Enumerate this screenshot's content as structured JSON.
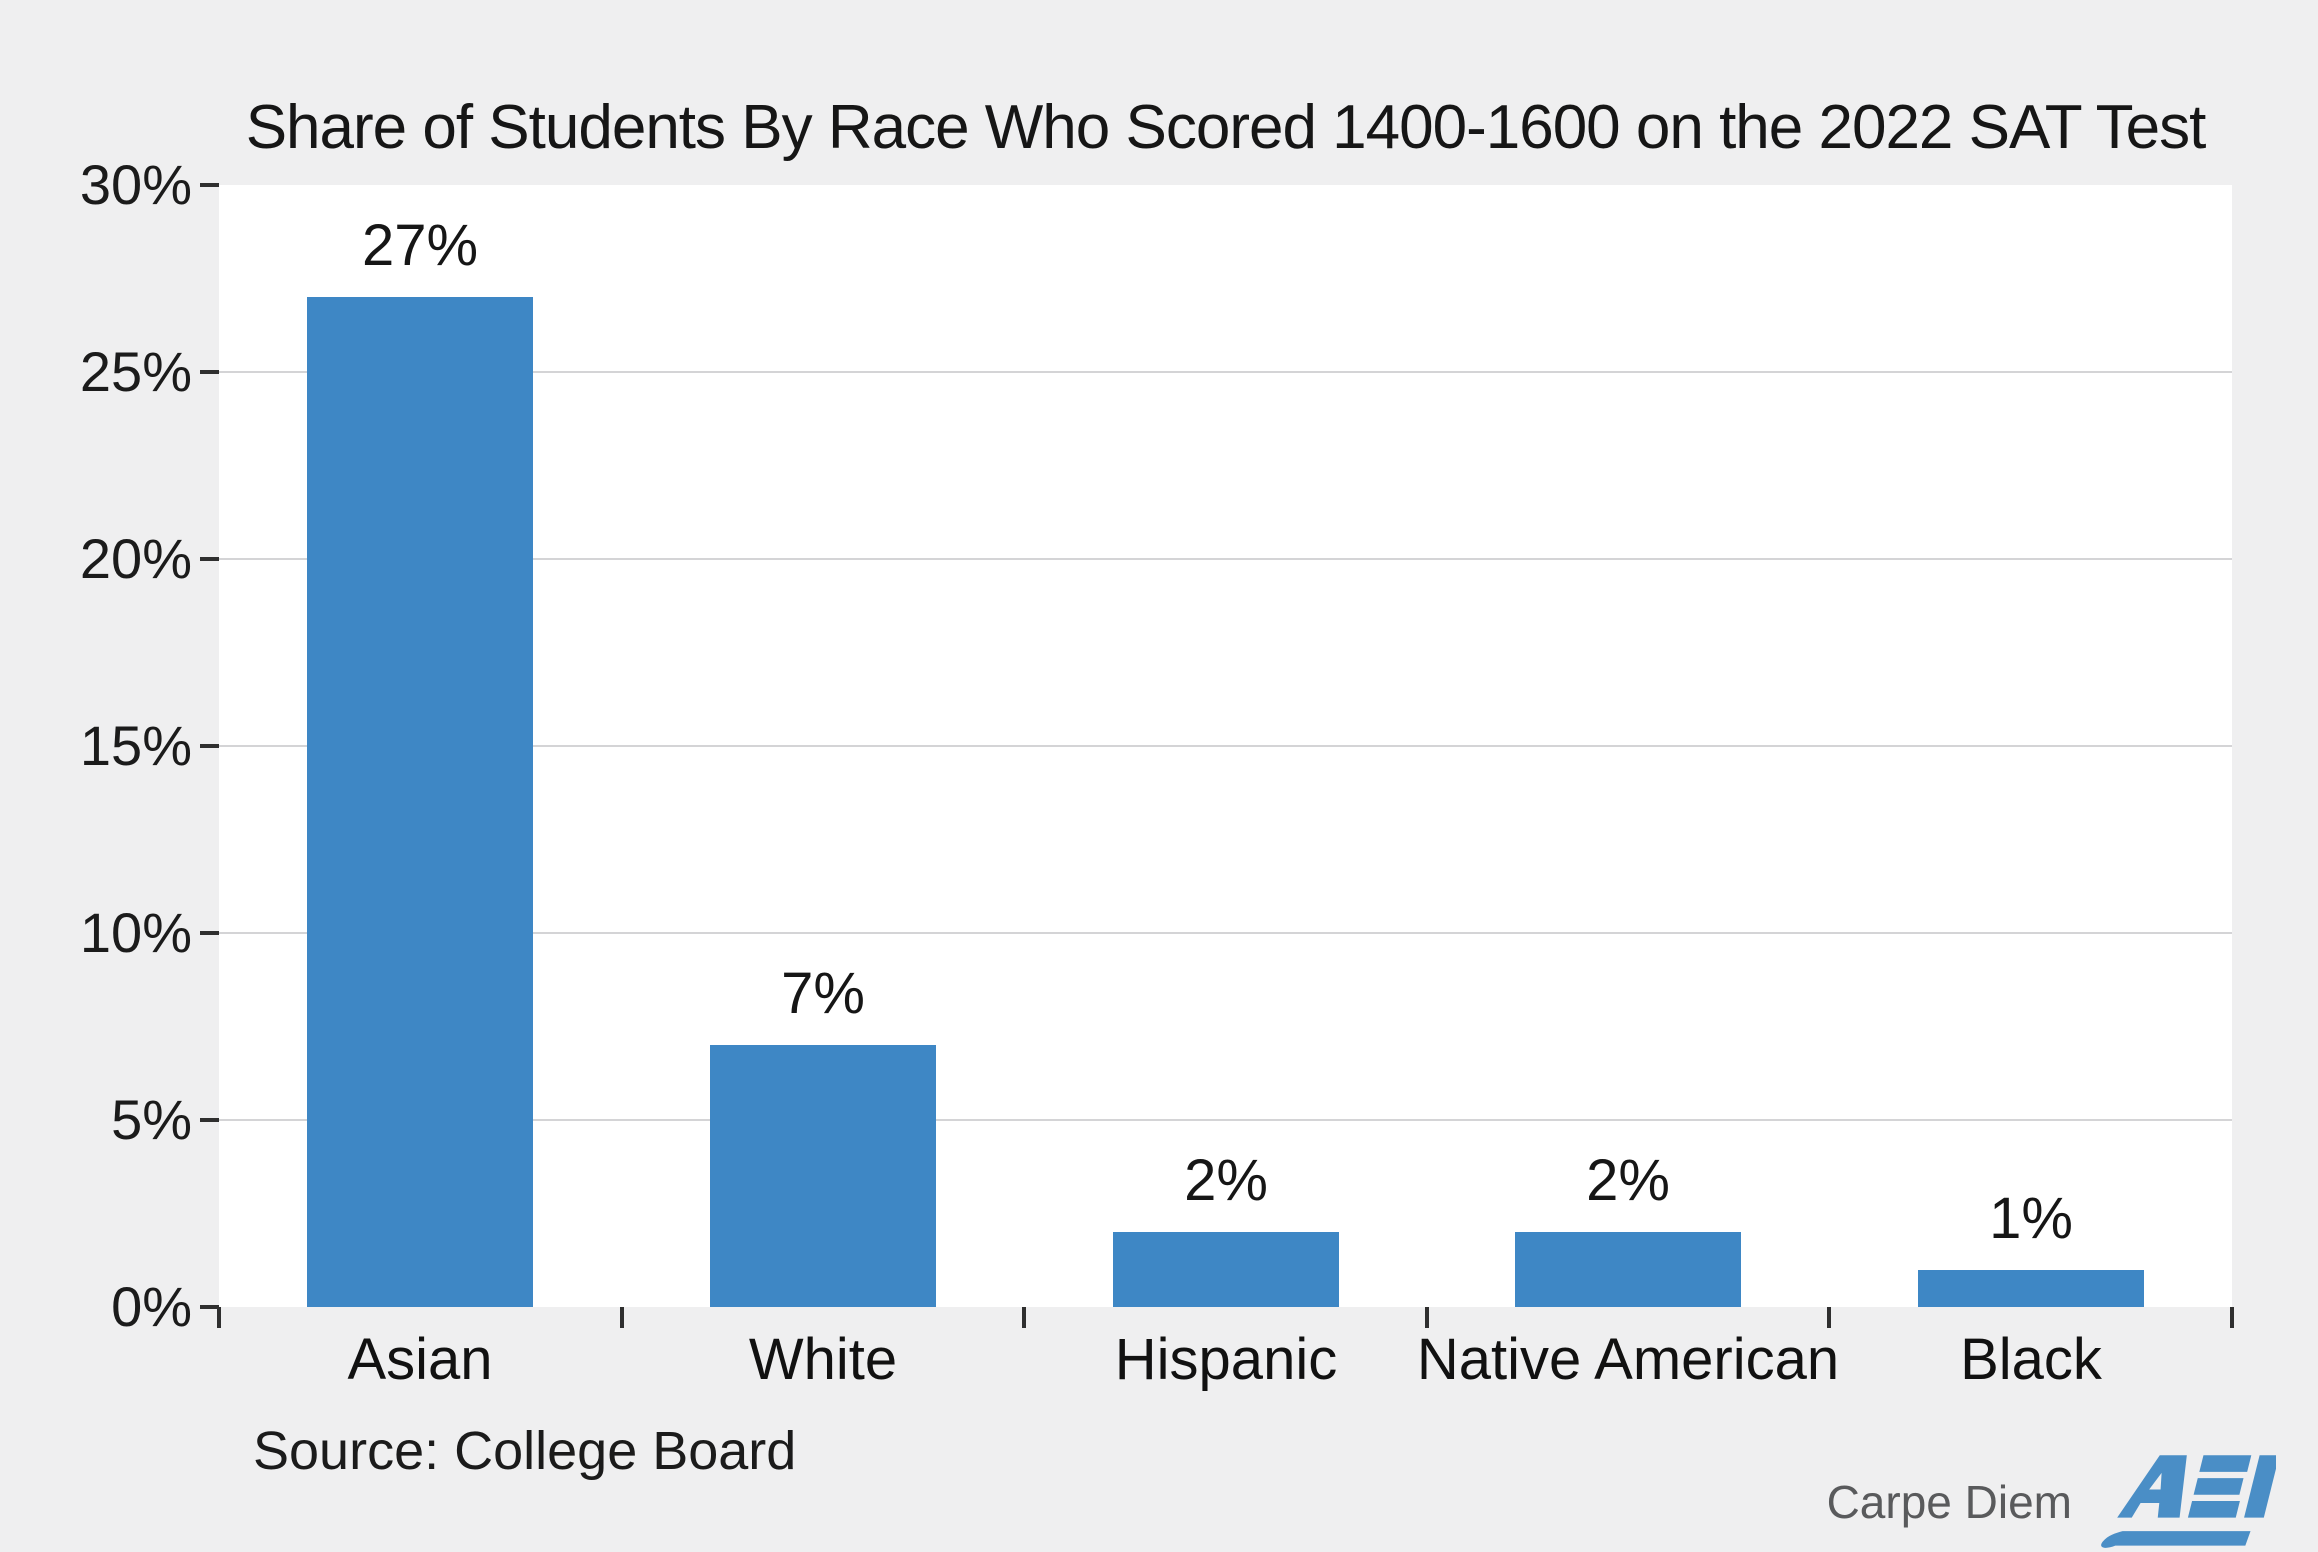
{
  "chart_data": {
    "type": "bar",
    "title": "Share of Students By Race Who Scored 1400-1600 on the 2022 SAT Test",
    "categories": [
      "Asian",
      "White",
      "Hispanic",
      "Native American",
      "Black"
    ],
    "values": [
      27,
      7,
      2,
      2,
      1
    ],
    "value_labels": [
      "27%",
      "7%",
      "2%",
      "2%",
      "1%"
    ],
    "y_tick_labels": [
      "30%",
      "25%",
      "20%",
      "15%",
      "10%",
      "5%",
      "0%"
    ],
    "ylim": [
      0,
      30
    ],
    "y_step": 5,
    "xlabel": "",
    "ylabel": "",
    "grid": "horizontal",
    "legend": "none"
  },
  "source_note": "Source: College Board",
  "footer": {
    "carpe_diem": "Carpe Diem",
    "aei": "AEI"
  },
  "colors": {
    "background": "#efeff0",
    "plot_background": "#ffffff",
    "bar": "#3e87c5",
    "gridline": "#d4d4d6",
    "tick": "#2f2f2f",
    "text": "#1b1b1b",
    "muted_text": "#595a5c",
    "aei_blue": "#4a8ec6"
  }
}
